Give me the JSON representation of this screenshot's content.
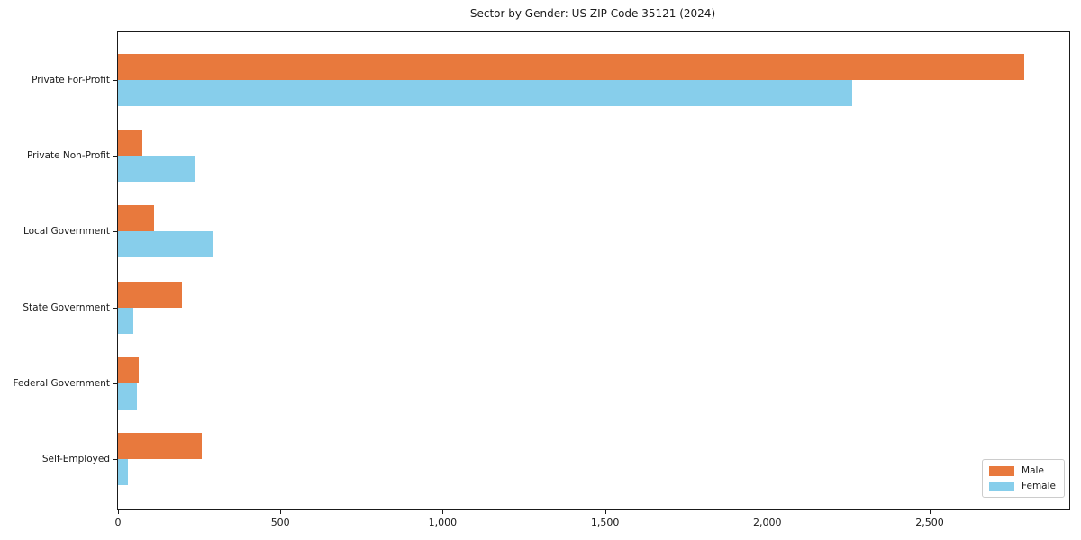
{
  "title": "Sector by Gender: US ZIP Code 35121 (2024)",
  "chart_data": {
    "type": "bar",
    "orientation": "horizontal",
    "title": "Sector by Gender: US ZIP Code 35121 (2024)",
    "categories": [
      "Private For-Profit",
      "Private Non-Profit",
      "Local Government",
      "State Government",
      "Federal Government",
      "Self-Employed"
    ],
    "series": [
      {
        "name": "Male",
        "color": "#e8793d",
        "values": [
          2790,
          75,
          110,
          197,
          63,
          258
        ]
      },
      {
        "name": "Female",
        "color": "#87ceeb",
        "values": [
          2260,
          239,
          294,
          47,
          58,
          31
        ]
      }
    ],
    "xlim": [
      0,
      2930
    ],
    "xticks": [
      0,
      500,
      1000,
      1500,
      2000,
      2500
    ],
    "xtick_labels": [
      "0",
      "500",
      "1,000",
      "1,500",
      "2,000",
      "2,500"
    ],
    "xlabel": "",
    "ylabel": "",
    "grid": false,
    "legend": {
      "position": "lower right",
      "items": [
        "Male",
        "Female"
      ]
    }
  }
}
